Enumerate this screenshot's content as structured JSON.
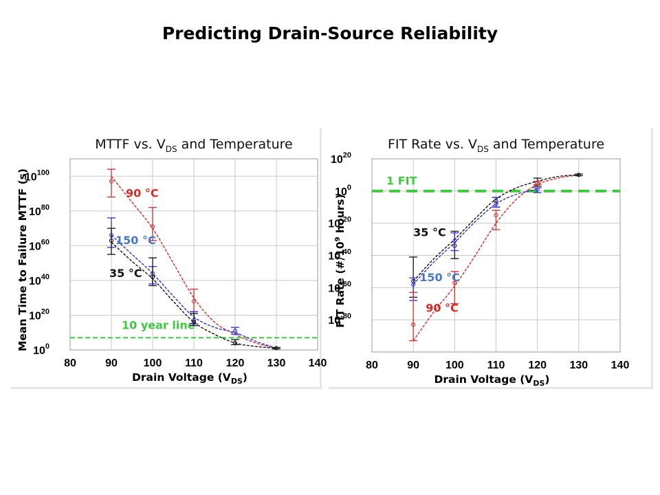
{
  "slide_title": "Predicting Drain-Source Reliability",
  "colors": {
    "t35": "#111111",
    "t90": "#d42a2a",
    "t150": "#2f2fd0",
    "ref_line": "#3ec93e",
    "label_150": "#4a78bd"
  },
  "chart_data": [
    {
      "type": "scatter",
      "title_parts": [
        "MTTF vs. V",
        "DS",
        " and Temperature"
      ],
      "xlabel_parts": [
        "Drain Voltage (V",
        "DS",
        ")"
      ],
      "ylabel": "Mean Time to Failure MTTF (s)",
      "x_ticks": [
        "80",
        "90",
        "100",
        "110",
        "120",
        "130",
        "140"
      ],
      "xlim": [
        80,
        140
      ],
      "y_scale": "log",
      "ylim_exponent": [
        0,
        110
      ],
      "y_tick_exponents": [
        "0",
        "20",
        "40",
        "60",
        "80",
        "100"
      ],
      "y_tick_base": "10",
      "grid": true,
      "series": [
        {
          "color": "t90",
          "points": [
            {
              "x": 90,
              "y_exp": 97,
              "err_exp": [
                88,
                104
              ]
            },
            {
              "x": 100,
              "y_exp": 71,
              "err_exp": [
                63,
                82
              ]
            },
            {
              "x": 110,
              "y_exp": 28,
              "err_exp": [
                22,
                35
              ]
            }
          ]
        },
        {
          "color": "t150",
          "points": [
            {
              "x": 90,
              "y_exp": 66,
              "err_exp": [
                59,
                76
              ]
            },
            {
              "x": 100,
              "y_exp": 44,
              "err_exp": [
                38,
                48
              ]
            },
            {
              "x": 110,
              "y_exp": 17,
              "err_exp": [
                15,
                22
              ]
            },
            {
              "x": 120,
              "y_exp": 11,
              "err_exp": [
                9,
                13
              ]
            }
          ]
        },
        {
          "color": "t35",
          "points": [
            {
              "x": 90,
              "y_exp": 63,
              "err_exp": [
                55,
                70
              ]
            },
            {
              "x": 100,
              "y_exp": 42,
              "err_exp": [
                37,
                53
              ]
            },
            {
              "x": 110,
              "y_exp": 16,
              "err_exp": [
                14,
                21
              ]
            },
            {
              "x": 120,
              "y_exp": 4,
              "err_exp": [
                3,
                6
              ]
            },
            {
              "x": 130,
              "y_exp": 1,
              "err_exp": [
                0.6,
                1.4
              ]
            }
          ]
        }
      ],
      "curves": [
        {
          "color": "t90",
          "pts": [
            [
              90,
              100
            ],
            [
              95,
              85
            ],
            [
              100,
              70
            ],
            [
              105,
              50
            ],
            [
              110,
              30
            ],
            [
              115,
              16
            ],
            [
              120,
              9
            ],
            [
              125,
              4
            ],
            [
              130,
              1
            ]
          ]
        },
        {
          "color": "t150",
          "pts": [
            [
              90,
              66
            ],
            [
              95,
              55
            ],
            [
              100,
              44
            ],
            [
              105,
              31
            ],
            [
              110,
              19
            ],
            [
              115,
              13
            ],
            [
              120,
              10
            ],
            [
              125,
              5
            ],
            [
              130,
              1
            ]
          ]
        },
        {
          "color": "t35",
          "pts": [
            [
              90,
              62
            ],
            [
              95,
              51
            ],
            [
              100,
              41
            ],
            [
              105,
              28
            ],
            [
              110,
              16
            ],
            [
              115,
              9
            ],
            [
              120,
              4
            ],
            [
              125,
              2
            ],
            [
              130,
              1
            ]
          ]
        }
      ],
      "ref_line": {
        "y_exp": 7,
        "label": "10 year line",
        "label_at": [
          92.5,
          12
        ]
      },
      "labels": [
        {
          "text": "90 °C",
          "color": "t90",
          "at": [
            93.5,
            88
          ]
        },
        {
          "text": "150 °C",
          "color": "label_150",
          "at": [
            91,
            61
          ]
        },
        {
          "text": "35 °C",
          "color": "t35",
          "at": [
            89.5,
            42
          ]
        }
      ]
    },
    {
      "type": "scatter",
      "title_parts": [
        "FIT Rate vs. V",
        "DS",
        " and Temperature"
      ],
      "xlabel_parts": [
        "Drain Voltage (V",
        "DS",
        ")"
      ],
      "ylabel_parts": [
        "FIT Rate (#/10",
        "9",
        " hours)"
      ],
      "x_ticks": [
        "80",
        "90",
        "100",
        "110",
        "120",
        "130",
        "140"
      ],
      "xlim": [
        80,
        140
      ],
      "y_scale": "log",
      "ylim_exponent": [
        -100,
        20
      ],
      "y_tick_exponents": [
        "-80",
        "-60",
        "-40",
        "-20",
        "0",
        "20"
      ],
      "y_tick_base": "10",
      "grid": true,
      "series": [
        {
          "color": "t35",
          "points": [
            {
              "x": 90,
              "y_exp": -56,
              "err_exp": [
                -66,
                -41
              ]
            },
            {
              "x": 100,
              "y_exp": -34,
              "err_exp": [
                -42,
                -25
              ]
            },
            {
              "x": 110,
              "y_exp": -6,
              "err_exp": [
                -10,
                -4
              ]
            },
            {
              "x": 120,
              "y_exp": 5,
              "err_exp": [
                3,
                8
              ]
            },
            {
              "x": 130,
              "y_exp": 10,
              "err_exp": [
                9.5,
                10.5
              ]
            }
          ]
        },
        {
          "color": "t150",
          "points": [
            {
              "x": 90,
              "y_exp": -58,
              "err_exp": [
                -68,
                -54
              ]
            },
            {
              "x": 100,
              "y_exp": -31,
              "err_exp": [
                -37,
                -26
              ]
            },
            {
              "x": 110,
              "y_exp": -8,
              "err_exp": [
                -10,
                -4
              ]
            },
            {
              "x": 120,
              "y_exp": 1,
              "err_exp": [
                -1,
                2
              ]
            }
          ]
        },
        {
          "color": "t90",
          "points": [
            {
              "x": 90,
              "y_exp": -83,
              "err_exp": [
                -93,
                -63
              ]
            },
            {
              "x": 100,
              "y_exp": -57,
              "err_exp": [
                -70,
                -50
              ]
            },
            {
              "x": 110,
              "y_exp": -15,
              "err_exp": [
                -24,
                -12
              ]
            },
            {
              "x": 120,
              "y_exp": 5,
              "err_exp": [
                4,
                6
              ]
            }
          ]
        }
      ],
      "curves": [
        {
          "color": "t90",
          "pts": [
            [
              90,
              -93
            ],
            [
              95,
              -75
            ],
            [
              100,
              -59
            ],
            [
              105,
              -40
            ],
            [
              110,
              -20
            ],
            [
              115,
              -5
            ],
            [
              120,
              4
            ],
            [
              125,
              8
            ],
            [
              130,
              10
            ]
          ]
        },
        {
          "color": "t150",
          "pts": [
            [
              90,
              -58
            ],
            [
              95,
              -44
            ],
            [
              100,
              -32
            ],
            [
              105,
              -19
            ],
            [
              110,
              -8
            ],
            [
              115,
              -2
            ],
            [
              120,
              1
            ]
          ]
        },
        {
          "color": "t35",
          "pts": [
            [
              90,
              -56
            ],
            [
              95,
              -42
            ],
            [
              100,
              -30
            ],
            [
              105,
              -17
            ],
            [
              110,
              -5
            ],
            [
              115,
              2
            ],
            [
              120,
              6
            ],
            [
              125,
              9
            ],
            [
              130,
              10
            ]
          ]
        }
      ],
      "ref_line": {
        "y_exp": 0,
        "label": "1 FIT",
        "label_at": [
          83.5,
          4
        ]
      },
      "labels": [
        {
          "text": "35 °C",
          "color": "t35",
          "at": [
            90,
            -28
          ]
        },
        {
          "text": "150 °C",
          "color": "label_150",
          "at": [
            91.5,
            -56
          ]
        },
        {
          "text": "90 °C",
          "color": "t90",
          "at": [
            93,
            -75
          ]
        }
      ]
    }
  ]
}
